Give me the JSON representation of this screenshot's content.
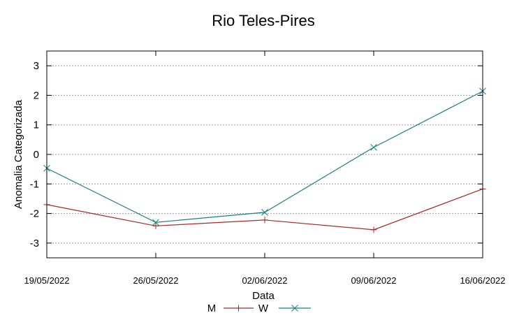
{
  "chart_data": {
    "type": "line",
    "title": "Rio Teles-Pires",
    "xlabel": "Data",
    "ylabel": "Anomalia Categorizada",
    "categories": [
      "19/05/2022",
      "26/05/2022",
      "02/06/2022",
      "09/06/2022",
      "16/06/2022"
    ],
    "ylim": [
      -3.5,
      3.5
    ],
    "yticks": [
      3,
      2,
      1,
      0,
      -1,
      -2,
      -3
    ],
    "grid": "horizontal-dashed",
    "legend": "bottom-center",
    "series": [
      {
        "name": "M",
        "marker": "plus",
        "color": "#a52a2a",
        "values": [
          -1.7,
          -2.42,
          -2.22,
          -2.55,
          -1.17
        ]
      },
      {
        "name": "W",
        "marker": "cross",
        "color": "#1a7f85",
        "values": [
          -0.47,
          -2.3,
          -1.96,
          0.24,
          2.14
        ]
      }
    ]
  }
}
